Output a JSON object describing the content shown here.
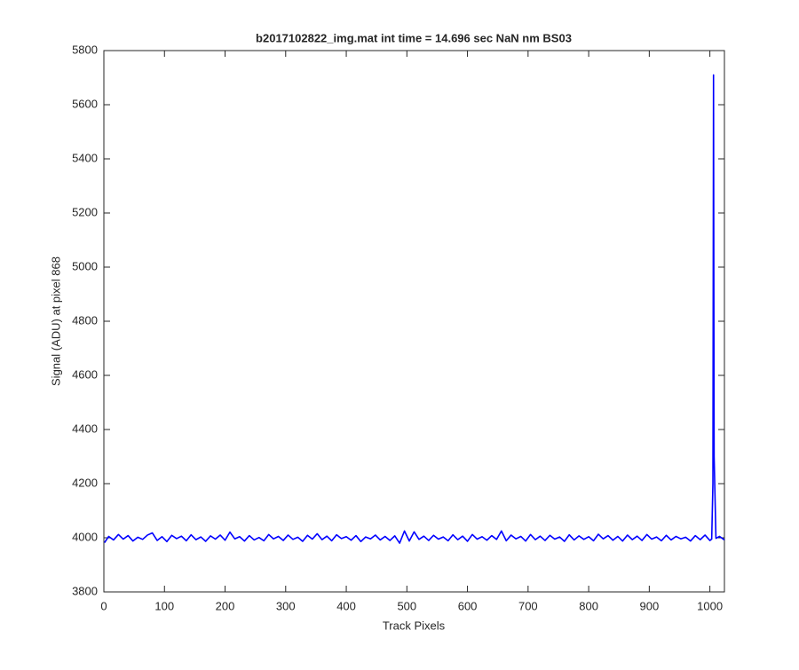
{
  "chart_data": {
    "type": "line",
    "title": "b2017102822_img.mat int time = 14.696 sec  NaN nm BS03",
    "x_label": "Track Pixels",
    "y_label": "Signal (ADU) at pixel 868",
    "color": "#0000ff",
    "x": [
      1,
      8,
      16,
      24,
      32,
      40,
      48,
      56,
      64,
      72,
      80,
      88,
      96,
      104,
      112,
      120,
      128,
      136,
      144,
      152,
      160,
      168,
      176,
      184,
      192,
      200,
      208,
      216,
      224,
      232,
      240,
      248,
      256,
      264,
      272,
      280,
      288,
      296,
      304,
      312,
      320,
      328,
      336,
      344,
      352,
      360,
      368,
      376,
      384,
      392,
      400,
      408,
      416,
      424,
      432,
      440,
      448,
      456,
      464,
      472,
      480,
      488,
      496,
      504,
      512,
      520,
      528,
      536,
      544,
      552,
      560,
      568,
      576,
      584,
      592,
      600,
      608,
      616,
      624,
      632,
      640,
      648,
      656,
      664,
      672,
      680,
      688,
      696,
      704,
      712,
      720,
      728,
      736,
      744,
      752,
      760,
      768,
      776,
      784,
      792,
      800,
      808,
      816,
      824,
      832,
      840,
      848,
      856,
      864,
      872,
      880,
      888,
      896,
      904,
      912,
      920,
      928,
      936,
      944,
      952,
      960,
      968,
      976,
      984,
      992,
      1000,
      1003,
      1005,
      1006,
      1007,
      1010,
      1016,
      1024
    ],
    "values": [
      3982,
      4005,
      3992,
      4012,
      3995,
      4008,
      3988,
      4002,
      3994,
      4010,
      4018,
      3990,
      4004,
      3986,
      4009,
      3997,
      4006,
      3989,
      4011,
      3993,
      4003,
      3987,
      4007,
      3995,
      4010,
      3991,
      4021,
      3996,
      4004,
      3988,
      4008,
      3992,
      4001,
      3989,
      4012,
      3996,
      4005,
      3990,
      4010,
      3994,
      4002,
      3987,
      4009,
      3995,
      4015,
      3993,
      4006,
      3989,
      4011,
      3997,
      4004,
      3991,
      4008,
      3986,
      4003,
      3996,
      4010,
      3992,
      4005,
      3990,
      4007,
      3980,
      4025,
      3988,
      4022,
      3994,
      4006,
      3990,
      4009,
      3995,
      4003,
      3989,
      4011,
      3993,
      4006,
      3987,
      4012,
      3995,
      4004,
      3991,
      4008,
      3994,
      4025,
      3989,
      4010,
      3996,
      4005,
      3988,
      4012,
      3993,
      4006,
      3990,
      4009,
      3995,
      4003,
      3987,
      4011,
      3992,
      4007,
      3994,
      4004,
      3989,
      4013,
      3996,
      4008,
      3991,
      4005,
      3988,
      4010,
      3993,
      4006,
      3990,
      4012,
      3995,
      4003,
      3989,
      4009,
      3992,
      4005,
      3996,
      4002,
      3988,
      4008,
      3993,
      4010,
      3990,
      3995,
      4200,
      5710,
      4300,
      3998,
      4005,
      3992
    ],
    "xlim": [
      0,
      1024
    ],
    "ylim": [
      3800,
      5800
    ],
    "xticks": [
      0,
      100,
      200,
      300,
      400,
      500,
      600,
      700,
      800,
      900,
      1000
    ],
    "yticks": [
      3800,
      4000,
      4200,
      4400,
      4600,
      4800,
      5000,
      5200,
      5400,
      5600,
      5800
    ]
  }
}
